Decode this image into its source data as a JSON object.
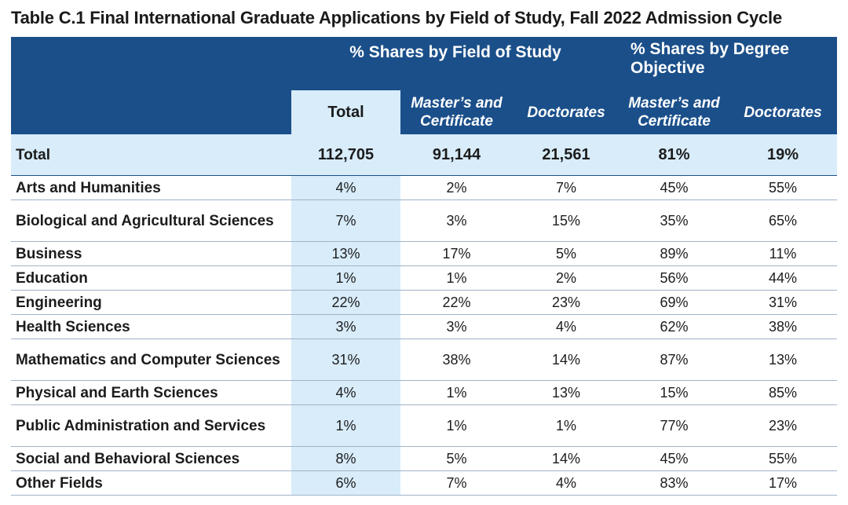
{
  "title": "Table C.1 Final International Graduate Applications by Field of Study, Fall 2022 Admission Cycle",
  "headers": {
    "group_field": "% Shares by Field of Study",
    "group_degree": "% Shares by Degree Objective",
    "total": "Total",
    "masters_cert": "Master’s and Certificate",
    "doctorates": "Doctorates"
  },
  "total_row": {
    "label": "Total",
    "total": "112,705",
    "masters_cert": "91,144",
    "doctorates": "21,561",
    "deg_masters_cert": "81%",
    "deg_doctorates": "19%"
  },
  "rows": [
    {
      "field": "Arts and Humanities",
      "total": "4%",
      "mc": "2%",
      "doc": "7%",
      "dmc": "45%",
      "ddoc": "55%"
    },
    {
      "field": "Biological and Agricultural Sciences",
      "total": "7%",
      "mc": "3%",
      "doc": "15%",
      "dmc": "35%",
      "ddoc": "65%"
    },
    {
      "field": "Business",
      "total": "13%",
      "mc": "17%",
      "doc": "5%",
      "dmc": "89%",
      "ddoc": "11%"
    },
    {
      "field": "Education",
      "total": "1%",
      "mc": "1%",
      "doc": "2%",
      "dmc": "56%",
      "ddoc": "44%"
    },
    {
      "field": "Engineering",
      "total": "22%",
      "mc": "22%",
      "doc": "23%",
      "dmc": "69%",
      "ddoc": "31%"
    },
    {
      "field": "Health Sciences",
      "total": "3%",
      "mc": "3%",
      "doc": "4%",
      "dmc": "62%",
      "ddoc": "38%"
    },
    {
      "field": "Mathematics and Computer Sciences",
      "total": "31%",
      "mc": "38%",
      "doc": "14%",
      "dmc": "87%",
      "ddoc": "13%"
    },
    {
      "field": "Physical and Earth Sciences",
      "total": "4%",
      "mc": "1%",
      "doc": "13%",
      "dmc": "15%",
      "ddoc": "85%"
    },
    {
      "field": "Public Administration and Services",
      "total": "1%",
      "mc": "1%",
      "doc": "1%",
      "dmc": "77%",
      "ddoc": "23%"
    },
    {
      "field": "Social and Behavioral Sciences",
      "total": "8%",
      "mc": "5%",
      "doc": "14%",
      "dmc": "45%",
      "ddoc": "55%"
    },
    {
      "field": "Other Fields",
      "total": "6%",
      "mc": "7%",
      "doc": "4%",
      "dmc": "83%",
      "ddoc": "17%"
    }
  ],
  "colors": {
    "header_bg": "#1b4f8a",
    "highlight_bg": "#d8ecfa"
  }
}
